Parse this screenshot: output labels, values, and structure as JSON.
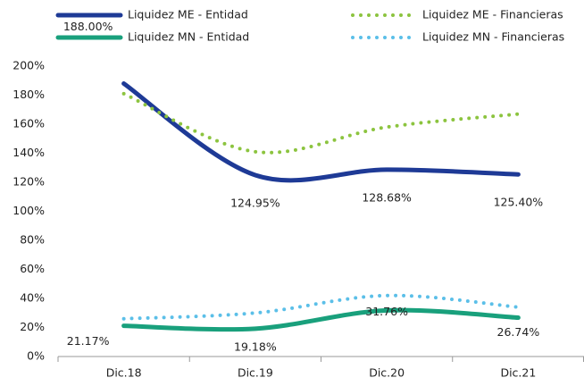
{
  "chart_data": {
    "type": "line",
    "categories": [
      "Dic.18",
      "Dic.19",
      "Dic.20",
      "Dic.21"
    ],
    "ylim": [
      0,
      200
    ],
    "yticks": [
      {
        "value": 0,
        "label": "0%"
      },
      {
        "value": 20,
        "label": "20%"
      },
      {
        "value": 40,
        "label": "40%"
      },
      {
        "value": 60,
        "label": "60%"
      },
      {
        "value": 80,
        "label": "80%"
      },
      {
        "value": 100,
        "label": "100%"
      },
      {
        "value": 120,
        "label": "120%"
      },
      {
        "value": 140,
        "label": "140%"
      },
      {
        "value": 160,
        "label": "160%"
      },
      {
        "value": 180,
        "label": "180%"
      },
      {
        "value": 200,
        "label": "200%"
      }
    ],
    "grid": false,
    "series": [
      {
        "name": "Liquidez ME - Entidad",
        "color": "#1e3a96",
        "style": "solid",
        "values": [
          188.0,
          124.95,
          128.68,
          125.4
        ],
        "value_labels": [
          "188.00%",
          "124.95%",
          "128.68%",
          "125.40%"
        ]
      },
      {
        "name": "Liquidez ME - Financieras",
        "color": "#8cc43f",
        "style": "dotted",
        "values": [
          181,
          141,
          158,
          167
        ]
      },
      {
        "name": "Liquidez MN - Entidad",
        "color": "#19a07c",
        "style": "solid",
        "values": [
          21.17,
          19.18,
          31.76,
          26.74
        ],
        "value_labels": [
          "21.17%",
          "19.18%",
          "31.76%",
          "26.74%"
        ]
      },
      {
        "name": "Liquidez MN - Financieras",
        "color": "#5bbfe8",
        "style": "dotted",
        "values": [
          26,
          30,
          42,
          34
        ]
      }
    ]
  }
}
